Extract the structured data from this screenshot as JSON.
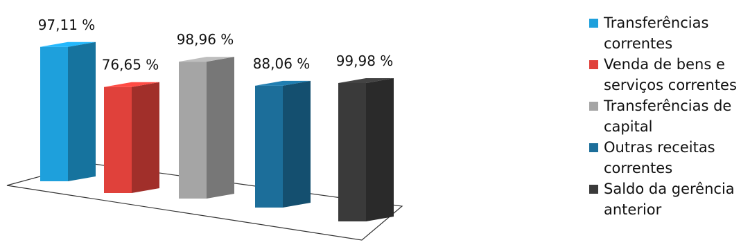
{
  "chart_data": {
    "type": "bar",
    "three_d": true,
    "categories": [
      "Transferências correntes",
      "Venda de bens e serviços correntes",
      "Transferências de capital",
      "Outras receitas correntes",
      "Saldo da gerência anterior"
    ],
    "values": [
      97.11,
      76.65,
      98.96,
      88.06,
      99.98
    ],
    "data_labels": [
      "97,11 %",
      "76,65 %",
      "98,96 %",
      "88,06 %",
      "99,98 %"
    ],
    "colors": [
      "#1ea0dc",
      "#e0413b",
      "#a5a5a5",
      "#1c6e9a",
      "#3a3a3a"
    ],
    "unit": "%",
    "legend_position": "right",
    "grid": false,
    "title": "",
    "xlabel": "",
    "ylabel": ""
  }
}
